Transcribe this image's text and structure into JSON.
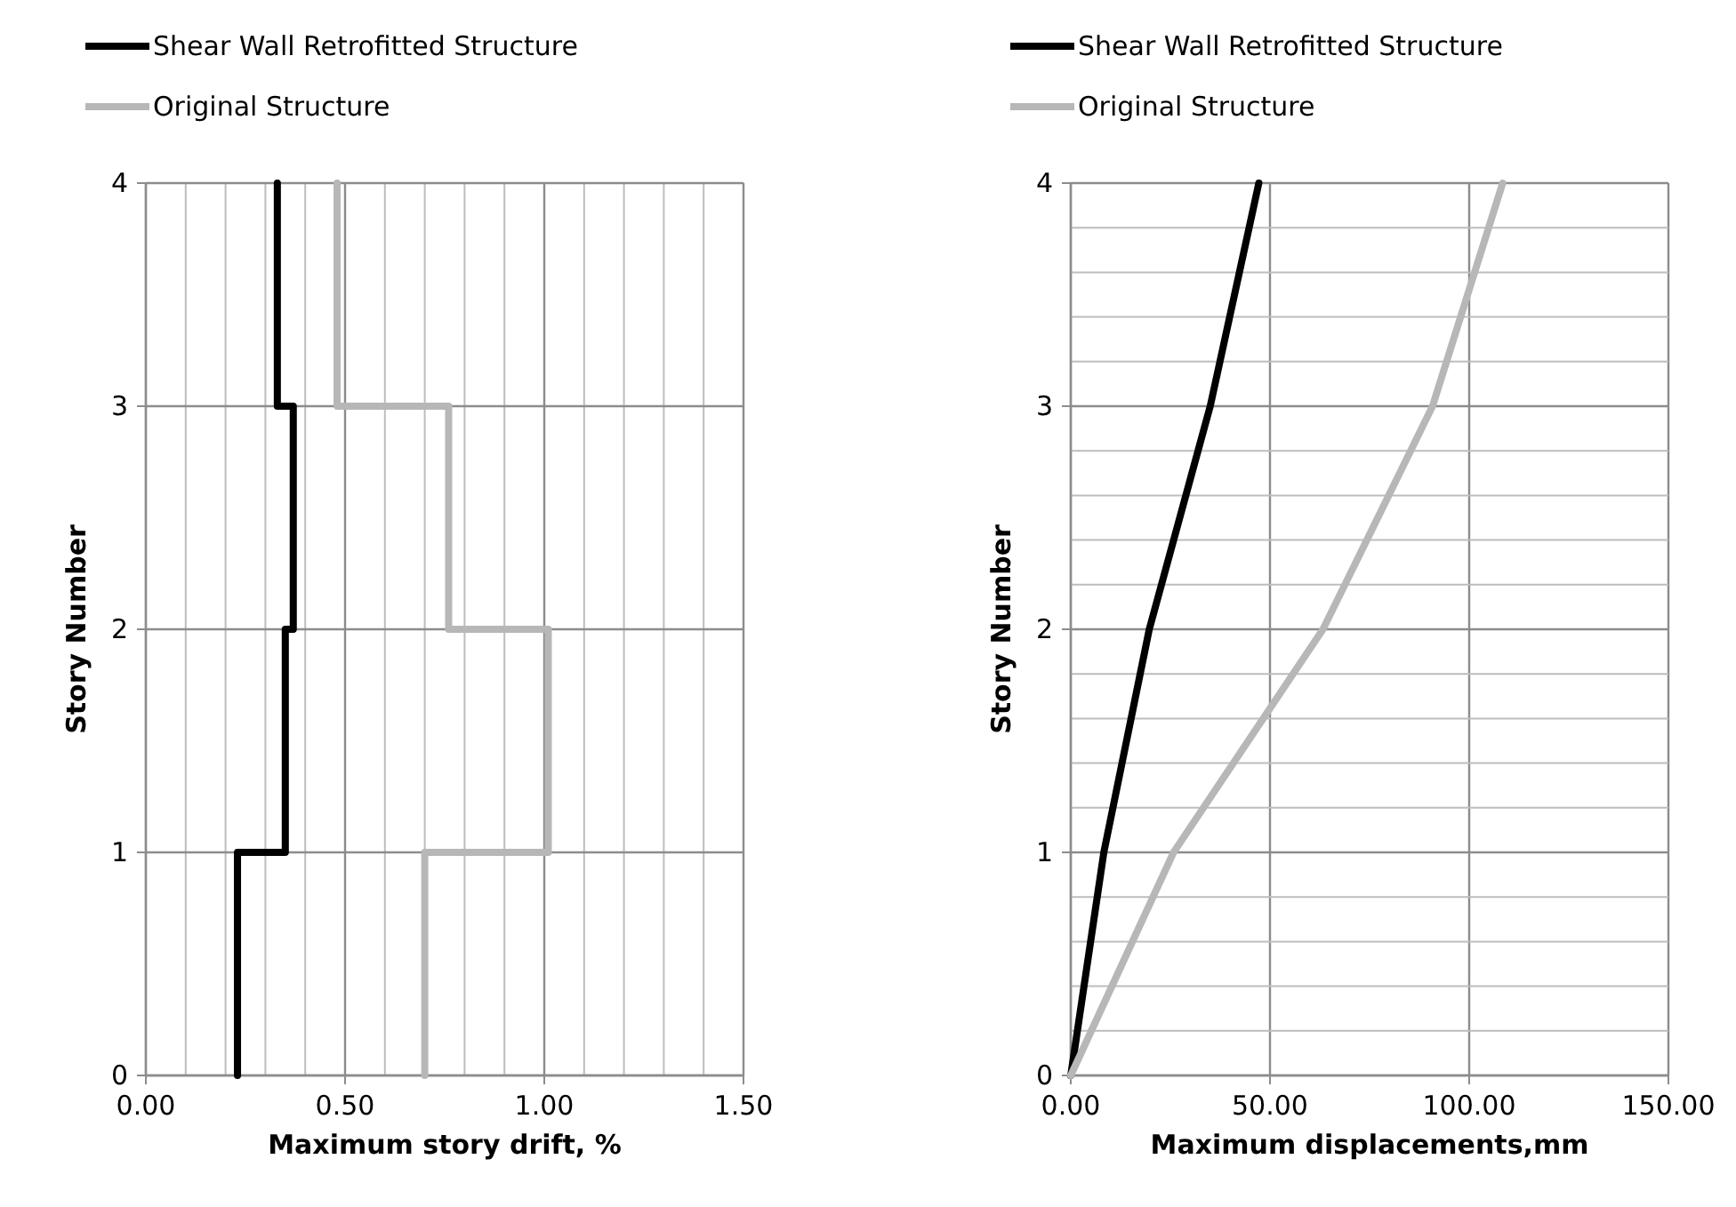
{
  "chart_data": [
    {
      "type": "line",
      "xlabel": "Maximum story drift, %",
      "ylabel": "Story Number",
      "xlim": [
        0,
        1.5
      ],
      "ylim": [
        0,
        4
      ],
      "xticks": [
        {
          "value": 0,
          "label": "0.00"
        },
        {
          "value": 0.1,
          "label": null
        },
        {
          "value": 0.2,
          "label": null
        },
        {
          "value": 0.3,
          "label": null
        },
        {
          "value": 0.4,
          "label": null
        },
        {
          "value": 0.5,
          "label": "0.50"
        },
        {
          "value": 0.6,
          "label": null
        },
        {
          "value": 0.7,
          "label": null
        },
        {
          "value": 0.8,
          "label": null
        },
        {
          "value": 0.9,
          "label": null
        },
        {
          "value": 1,
          "label": "1.00"
        },
        {
          "value": 1.1,
          "label": null
        },
        {
          "value": 1.2,
          "label": null
        },
        {
          "value": 1.3,
          "label": null
        },
        {
          "value": 1.4,
          "label": null
        },
        {
          "value": 1.5,
          "label": "1.50"
        }
      ],
      "yticks": [
        0,
        1,
        2,
        3,
        4
      ],
      "grid": true,
      "legend": "top",
      "line_style": "solid",
      "series": [
        {
          "name": "Shear Wall Retrofitted Structure",
          "color": "#000000",
          "x": [
            0.23,
            0.23,
            0.35,
            0.35,
            0.37,
            0.37,
            0.33,
            0.33
          ],
          "values": [
            0,
            1,
            1,
            2,
            2,
            3,
            3,
            4
          ]
        },
        {
          "name": "Original Structure",
          "color": "#b7b7b7",
          "x": [
            0.7,
            0.7,
            1.01,
            1.01,
            0.76,
            0.76,
            0.48,
            0.48
          ],
          "values": [
            0,
            1,
            1,
            2,
            2,
            3,
            3,
            4
          ]
        }
      ]
    },
    {
      "type": "line",
      "xlabel": "Maximum displacements,mm",
      "ylabel": "Story Number",
      "xlim": [
        0,
        150
      ],
      "ylim": [
        0,
        4
      ],
      "xticks": [
        {
          "value": 0,
          "label": "0.00"
        },
        {
          "value": 50,
          "label": "50.00"
        },
        {
          "value": 100,
          "label": "100.00"
        },
        {
          "value": 150,
          "label": "150.00"
        }
      ],
      "yticks": [
        0,
        {
          "value": 0.2,
          "label": null
        },
        {
          "value": 0.4,
          "label": null
        },
        {
          "value": 0.6,
          "label": null
        },
        {
          "value": 0.8,
          "label": null
        },
        1,
        {
          "value": 1.2,
          "label": null
        },
        {
          "value": 1.4,
          "label": null
        },
        {
          "value": 1.6,
          "label": null
        },
        {
          "value": 1.8,
          "label": null
        },
        2,
        {
          "value": 2.2,
          "label": null
        },
        {
          "value": 2.4,
          "label": null
        },
        {
          "value": 2.6,
          "label": null
        },
        {
          "value": 2.8,
          "label": null
        },
        3,
        {
          "value": 3.2,
          "label": null
        },
        {
          "value": 3.4,
          "label": null
        },
        {
          "value": 3.6,
          "label": null
        },
        {
          "value": 3.8,
          "label": null
        },
        4
      ],
      "grid": true,
      "legend": "top",
      "line_style": "solid",
      "series": [
        {
          "name": "Shear Wall Retrofitted Structure",
          "color": "#000000",
          "x": [
            0,
            8.3,
            19.7,
            35,
            47.2
          ],
          "values": [
            0,
            1,
            2,
            3,
            4
          ]
        },
        {
          "name": "Original Structure",
          "color": "#b7b7b7",
          "x": [
            0,
            25.8,
            63.3,
            90.8,
            108.4
          ],
          "values": [
            0,
            1,
            2,
            3,
            4
          ]
        }
      ]
    }
  ]
}
